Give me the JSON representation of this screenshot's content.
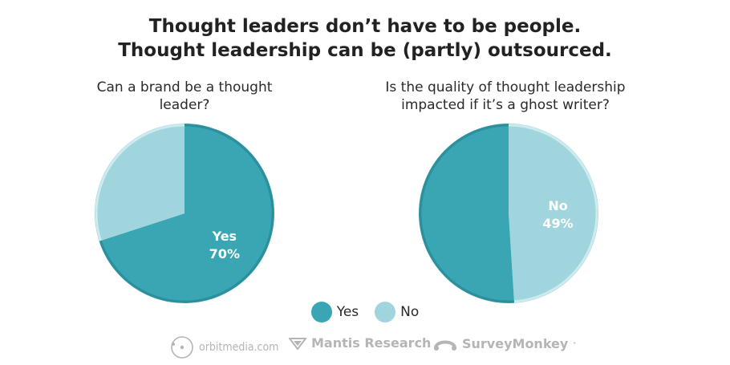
{
  "title_line1": "Thought leaders don’t have to be people.",
  "title_line2": "Thought leadership can be (partly) outsourced.",
  "colors": {
    "yes": "#3aa6b3",
    "no": "#a1d5de",
    "ring_yes": "#2d8f9b",
    "ring_no": "#cdeaef"
  },
  "chart_data": [
    {
      "type": "pie",
      "title": "Can a brand be a thought leader?",
      "slices": [
        {
          "label": "Yes",
          "value": 70
        },
        {
          "label": "No",
          "value": 30
        }
      ],
      "label_text": {
        "name": "Yes",
        "value": "70%"
      }
    },
    {
      "type": "pie",
      "title": "Is the quality of thought leadership impacted if it’s a ghost writer?",
      "slices": [
        {
          "label": "No",
          "value": 49
        },
        {
          "label": "Yes",
          "value": 51
        }
      ],
      "label_text": {
        "name": "No",
        "value": "49%"
      }
    }
  ],
  "legend": [
    {
      "label": "Yes",
      "color": "#3aa6b3"
    },
    {
      "label": "No",
      "color": "#a1d5de"
    }
  ],
  "logos": {
    "orbit": "orbitmedia.com",
    "mantis": "Mantis Research",
    "survey": "SurveyMonkey",
    "survey_mark": "·",
    "orbit_icon": "orbit-circle-icon",
    "mantis_icon": "mantis-chevron-icon",
    "survey_icon": "surveymonkey-icon"
  }
}
